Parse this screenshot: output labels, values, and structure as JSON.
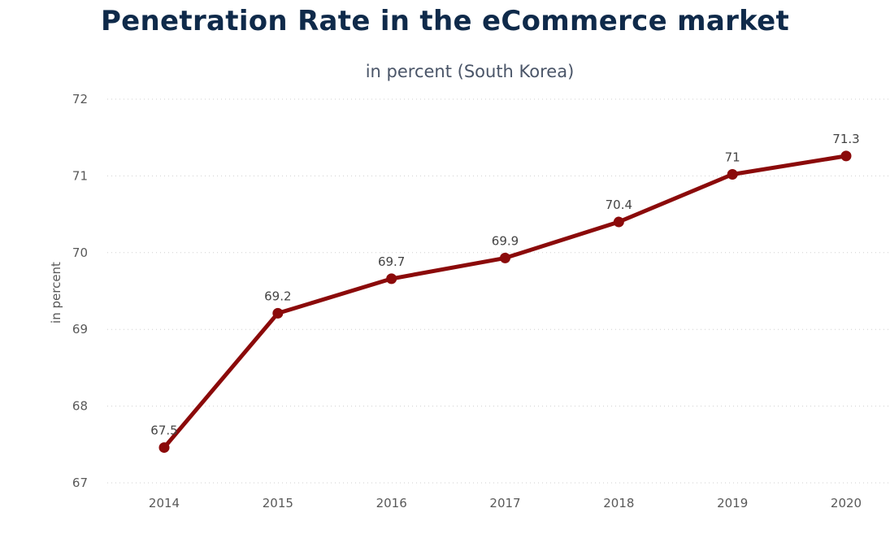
{
  "chart_data": {
    "type": "line",
    "title": "Penetration Rate in the eCommerce market",
    "subtitle": "in percent (South Korea)",
    "xlabel": "",
    "ylabel": "in percent",
    "categories": [
      "2014",
      "2015",
      "2016",
      "2017",
      "2018",
      "2019",
      "2020"
    ],
    "series": [
      {
        "name": "Penetration Rate",
        "values": [
          67.46,
          69.21,
          69.66,
          69.93,
          70.4,
          71.02,
          71.26
        ],
        "labels": [
          "67.5",
          "69.2",
          "69.7",
          "69.9",
          "70.4",
          "71",
          "71.3"
        ],
        "color": "#8b0a0a"
      }
    ],
    "ylim": [
      67,
      72
    ],
    "yticks": [
      "67",
      "68",
      "69",
      "70",
      "71",
      "72"
    ],
    "grid": true,
    "legend": "none"
  }
}
